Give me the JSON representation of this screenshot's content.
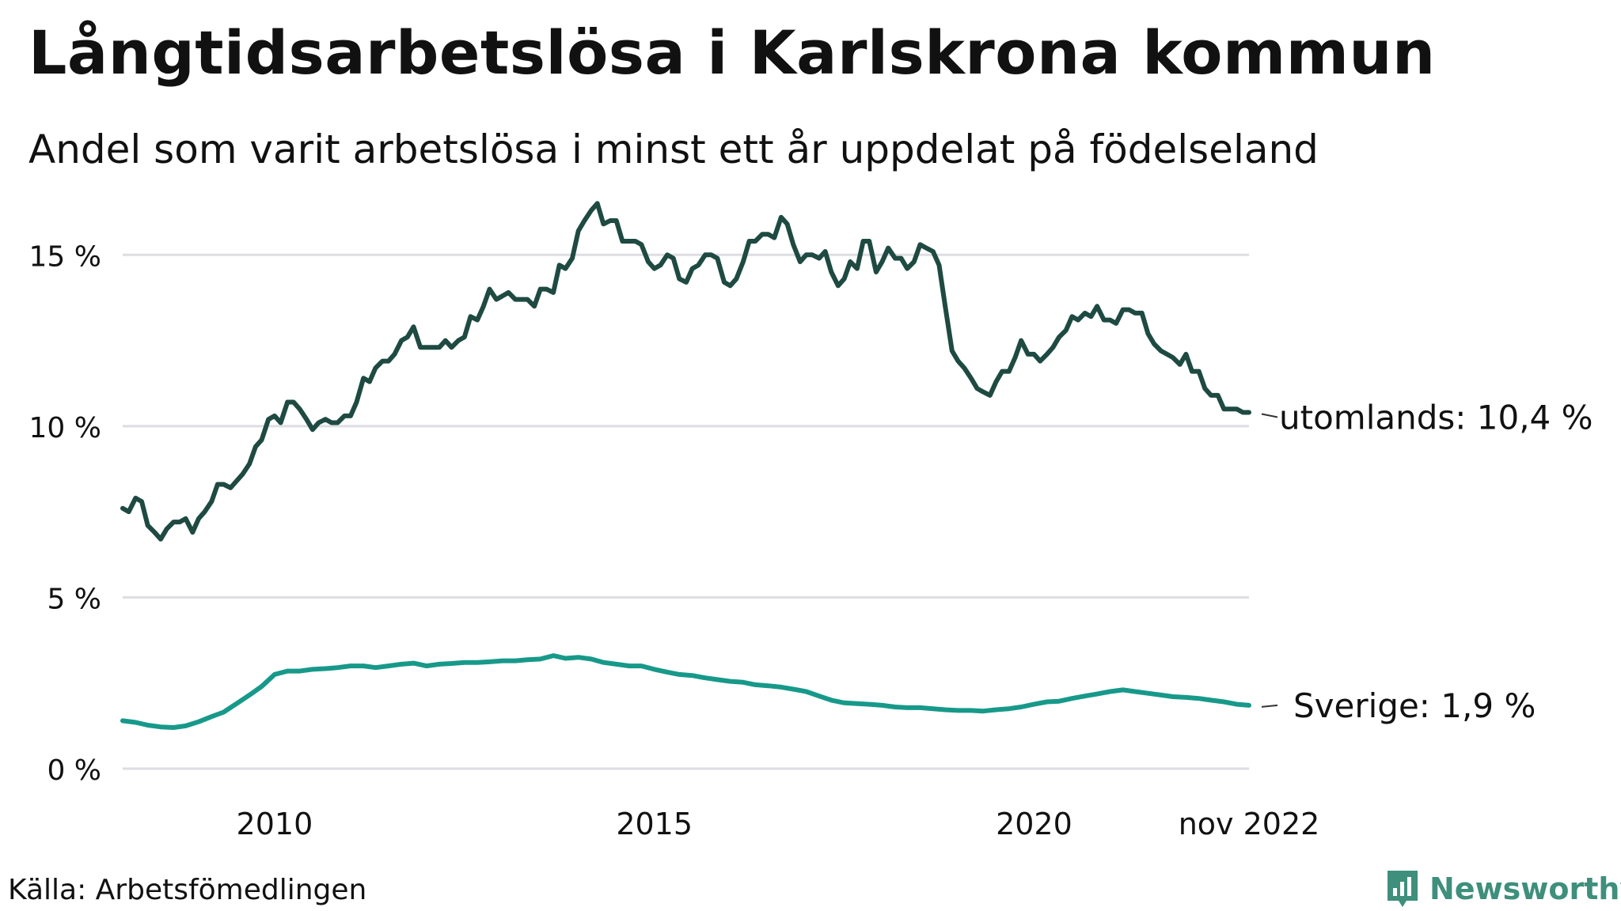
{
  "title": "Långtidsarbetslösa i Karlskrona kommun",
  "subtitle": "Andel som varit arbetslösa i minst ett år uppdelat på födelseland",
  "source": "Källa: Arbetsfömedlingen",
  "brand": {
    "name": "Newsworthy",
    "logo_icon": "newsworthy-bar-chart-icon",
    "color": "#3e8f7c"
  },
  "chart_data": {
    "type": "line",
    "title": "Långtidsarbetslösa i Karlskrona kommun",
    "xlabel": "",
    "ylabel": "",
    "x_unit": "year",
    "xlim": [
      2008.0,
      2022.83
    ],
    "ylim": [
      0,
      16.9
    ],
    "y_ticks": [
      0,
      5,
      10,
      15
    ],
    "y_tick_labels": [
      "0 %",
      "5 %",
      "10 %",
      "15 %"
    ],
    "x_ticks": [
      2010,
      2015,
      2020,
      2022.83
    ],
    "x_tick_labels": [
      "2010",
      "2015",
      "2020",
      "nov 2022"
    ],
    "grid": "horizontal",
    "series": [
      {
        "name": "utomlands",
        "end_label": "utomlands: 10,4 %",
        "color": "#1e4a42",
        "points": [
          [
            2008.0,
            7.6
          ],
          [
            2008.08,
            7.5
          ],
          [
            2008.17,
            7.9
          ],
          [
            2008.25,
            7.8
          ],
          [
            2008.33,
            7.1
          ],
          [
            2008.42,
            6.9
          ],
          [
            2008.5,
            6.7
          ],
          [
            2008.58,
            7.0
          ],
          [
            2008.67,
            7.2
          ],
          [
            2008.75,
            7.2
          ],
          [
            2008.83,
            7.3
          ],
          [
            2008.92,
            6.9
          ],
          [
            2009.0,
            7.3
          ],
          [
            2009.08,
            7.5
          ],
          [
            2009.17,
            7.8
          ],
          [
            2009.25,
            8.3
          ],
          [
            2009.33,
            8.3
          ],
          [
            2009.42,
            8.2
          ],
          [
            2009.5,
            8.4
          ],
          [
            2009.58,
            8.6
          ],
          [
            2009.67,
            8.9
          ],
          [
            2009.75,
            9.4
          ],
          [
            2009.83,
            9.6
          ],
          [
            2009.92,
            10.2
          ],
          [
            2010.0,
            10.3
          ],
          [
            2010.08,
            10.1
          ],
          [
            2010.17,
            10.7
          ],
          [
            2010.25,
            10.7
          ],
          [
            2010.33,
            10.5
          ],
          [
            2010.42,
            10.2
          ],
          [
            2010.5,
            9.9
          ],
          [
            2010.58,
            10.1
          ],
          [
            2010.67,
            10.2
          ],
          [
            2010.75,
            10.1
          ],
          [
            2010.83,
            10.1
          ],
          [
            2010.92,
            10.3
          ],
          [
            2011.0,
            10.3
          ],
          [
            2011.08,
            10.7
          ],
          [
            2011.17,
            11.4
          ],
          [
            2011.25,
            11.3
          ],
          [
            2011.33,
            11.7
          ],
          [
            2011.42,
            11.9
          ],
          [
            2011.5,
            11.9
          ],
          [
            2011.58,
            12.1
          ],
          [
            2011.67,
            12.5
          ],
          [
            2011.75,
            12.6
          ],
          [
            2011.83,
            12.9
          ],
          [
            2011.92,
            12.3
          ],
          [
            2012.0,
            12.3
          ],
          [
            2012.08,
            12.3
          ],
          [
            2012.17,
            12.3
          ],
          [
            2012.25,
            12.5
          ],
          [
            2012.33,
            12.3
          ],
          [
            2012.42,
            12.5
          ],
          [
            2012.5,
            12.6
          ],
          [
            2012.58,
            13.2
          ],
          [
            2012.67,
            13.1
          ],
          [
            2012.75,
            13.5
          ],
          [
            2012.83,
            14.0
          ],
          [
            2012.92,
            13.7
          ],
          [
            2013.0,
            13.8
          ],
          [
            2013.08,
            13.9
          ],
          [
            2013.17,
            13.7
          ],
          [
            2013.25,
            13.7
          ],
          [
            2013.33,
            13.7
          ],
          [
            2013.42,
            13.5
          ],
          [
            2013.5,
            14.0
          ],
          [
            2013.58,
            14.0
          ],
          [
            2013.67,
            13.9
          ],
          [
            2013.75,
            14.7
          ],
          [
            2013.83,
            14.6
          ],
          [
            2013.92,
            14.9
          ],
          [
            2014.0,
            15.7
          ],
          [
            2014.08,
            16.0
          ],
          [
            2014.17,
            16.3
          ],
          [
            2014.25,
            16.5
          ],
          [
            2014.33,
            15.9
          ],
          [
            2014.42,
            16.0
          ],
          [
            2014.5,
            16.0
          ],
          [
            2014.58,
            15.4
          ],
          [
            2014.67,
            15.4
          ],
          [
            2014.75,
            15.4
          ],
          [
            2014.83,
            15.3
          ],
          [
            2014.92,
            14.8
          ],
          [
            2015.0,
            14.6
          ],
          [
            2015.08,
            14.7
          ],
          [
            2015.17,
            15.0
          ],
          [
            2015.25,
            14.9
          ],
          [
            2015.33,
            14.3
          ],
          [
            2015.42,
            14.2
          ],
          [
            2015.5,
            14.6
          ],
          [
            2015.58,
            14.7
          ],
          [
            2015.67,
            15.0
          ],
          [
            2015.75,
            15.0
          ],
          [
            2015.83,
            14.9
          ],
          [
            2015.92,
            14.2
          ],
          [
            2016.0,
            14.1
          ],
          [
            2016.08,
            14.3
          ],
          [
            2016.17,
            14.8
          ],
          [
            2016.25,
            15.4
          ],
          [
            2016.33,
            15.4
          ],
          [
            2016.42,
            15.6
          ],
          [
            2016.5,
            15.6
          ],
          [
            2016.58,
            15.5
          ],
          [
            2016.67,
            16.1
          ],
          [
            2016.75,
            15.9
          ],
          [
            2016.83,
            15.3
          ],
          [
            2016.92,
            14.8
          ],
          [
            2017.0,
            15.0
          ],
          [
            2017.08,
            15.0
          ],
          [
            2017.17,
            14.9
          ],
          [
            2017.25,
            15.1
          ],
          [
            2017.33,
            14.5
          ],
          [
            2017.42,
            14.1
          ],
          [
            2017.5,
            14.3
          ],
          [
            2017.58,
            14.8
          ],
          [
            2017.67,
            14.6
          ],
          [
            2017.75,
            15.4
          ],
          [
            2017.83,
            15.4
          ],
          [
            2017.92,
            14.5
          ],
          [
            2018.0,
            14.8
          ],
          [
            2018.08,
            15.2
          ],
          [
            2018.17,
            14.9
          ],
          [
            2018.25,
            14.9
          ],
          [
            2018.33,
            14.6
          ],
          [
            2018.42,
            14.8
          ],
          [
            2018.5,
            15.3
          ],
          [
            2018.58,
            15.2
          ],
          [
            2018.67,
            15.1
          ],
          [
            2018.75,
            14.7
          ],
          [
            2018.83,
            13.5
          ],
          [
            2018.92,
            12.2
          ],
          [
            2019.0,
            11.9
          ],
          [
            2019.08,
            11.7
          ],
          [
            2019.17,
            11.4
          ],
          [
            2019.25,
            11.1
          ],
          [
            2019.33,
            11.0
          ],
          [
            2019.42,
            10.9
          ],
          [
            2019.5,
            11.3
          ],
          [
            2019.58,
            11.6
          ],
          [
            2019.67,
            11.6
          ],
          [
            2019.75,
            12.0
          ],
          [
            2019.83,
            12.5
          ],
          [
            2019.92,
            12.1
          ],
          [
            2020.0,
            12.1
          ],
          [
            2020.08,
            11.9
          ],
          [
            2020.17,
            12.1
          ],
          [
            2020.25,
            12.3
          ],
          [
            2020.33,
            12.6
          ],
          [
            2020.42,
            12.8
          ],
          [
            2020.5,
            13.2
          ],
          [
            2020.58,
            13.1
          ],
          [
            2020.67,
            13.3
          ],
          [
            2020.75,
            13.2
          ],
          [
            2020.83,
            13.5
          ],
          [
            2020.92,
            13.1
          ],
          [
            2021.0,
            13.1
          ],
          [
            2021.08,
            13.0
          ],
          [
            2021.17,
            13.4
          ],
          [
            2021.25,
            13.4
          ],
          [
            2021.33,
            13.3
          ],
          [
            2021.42,
            13.3
          ],
          [
            2021.5,
            12.7
          ],
          [
            2021.58,
            12.4
          ],
          [
            2021.67,
            12.2
          ],
          [
            2021.75,
            12.1
          ],
          [
            2021.83,
            12.0
          ],
          [
            2021.92,
            11.8
          ],
          [
            2022.0,
            12.1
          ],
          [
            2022.08,
            11.6
          ],
          [
            2022.17,
            11.6
          ],
          [
            2022.25,
            11.1
          ],
          [
            2022.33,
            10.9
          ],
          [
            2022.42,
            10.9
          ],
          [
            2022.5,
            10.5
          ],
          [
            2022.58,
            10.5
          ],
          [
            2022.67,
            10.5
          ],
          [
            2022.75,
            10.4
          ],
          [
            2022.83,
            10.4
          ]
        ]
      },
      {
        "name": "Sverige",
        "end_label": "Sverige:  1,9 %",
        "color": "#17998a",
        "points": [
          [
            2008.0,
            1.4
          ],
          [
            2008.17,
            1.35
          ],
          [
            2008.33,
            1.27
          ],
          [
            2008.5,
            1.22
          ],
          [
            2008.67,
            1.2
          ],
          [
            2008.83,
            1.25
          ],
          [
            2009.0,
            1.37
          ],
          [
            2009.17,
            1.52
          ],
          [
            2009.33,
            1.65
          ],
          [
            2009.5,
            1.9
          ],
          [
            2009.67,
            2.15
          ],
          [
            2009.83,
            2.4
          ],
          [
            2010.0,
            2.75
          ],
          [
            2010.17,
            2.85
          ],
          [
            2010.33,
            2.85
          ],
          [
            2010.5,
            2.9
          ],
          [
            2010.67,
            2.92
          ],
          [
            2010.83,
            2.95
          ],
          [
            2011.0,
            3.0
          ],
          [
            2011.17,
            3.0
          ],
          [
            2011.33,
            2.95
          ],
          [
            2011.5,
            3.0
          ],
          [
            2011.67,
            3.05
          ],
          [
            2011.83,
            3.08
          ],
          [
            2012.0,
            3.0
          ],
          [
            2012.17,
            3.05
          ],
          [
            2012.33,
            3.07
          ],
          [
            2012.5,
            3.1
          ],
          [
            2012.67,
            3.1
          ],
          [
            2012.83,
            3.12
          ],
          [
            2013.0,
            3.15
          ],
          [
            2013.17,
            3.15
          ],
          [
            2013.33,
            3.18
          ],
          [
            2013.5,
            3.2
          ],
          [
            2013.67,
            3.3
          ],
          [
            2013.83,
            3.22
          ],
          [
            2014.0,
            3.25
          ],
          [
            2014.17,
            3.2
          ],
          [
            2014.33,
            3.1
          ],
          [
            2014.5,
            3.05
          ],
          [
            2014.67,
            3.0
          ],
          [
            2014.83,
            3.0
          ],
          [
            2015.0,
            2.9
          ],
          [
            2015.17,
            2.82
          ],
          [
            2015.33,
            2.75
          ],
          [
            2015.5,
            2.72
          ],
          [
            2015.67,
            2.65
          ],
          [
            2015.83,
            2.6
          ],
          [
            2016.0,
            2.55
          ],
          [
            2016.17,
            2.52
          ],
          [
            2016.33,
            2.45
          ],
          [
            2016.5,
            2.42
          ],
          [
            2016.67,
            2.38
          ],
          [
            2016.83,
            2.32
          ],
          [
            2017.0,
            2.25
          ],
          [
            2017.17,
            2.12
          ],
          [
            2017.33,
            2.0
          ],
          [
            2017.5,
            1.92
          ],
          [
            2017.67,
            1.9
          ],
          [
            2017.83,
            1.88
          ],
          [
            2018.0,
            1.85
          ],
          [
            2018.17,
            1.8
          ],
          [
            2018.33,
            1.78
          ],
          [
            2018.5,
            1.78
          ],
          [
            2018.67,
            1.75
          ],
          [
            2018.83,
            1.72
          ],
          [
            2019.0,
            1.7
          ],
          [
            2019.17,
            1.7
          ],
          [
            2019.33,
            1.68
          ],
          [
            2019.5,
            1.72
          ],
          [
            2019.67,
            1.75
          ],
          [
            2019.83,
            1.8
          ],
          [
            2020.0,
            1.88
          ],
          [
            2020.17,
            1.95
          ],
          [
            2020.33,
            1.97
          ],
          [
            2020.5,
            2.05
          ],
          [
            2020.67,
            2.12
          ],
          [
            2020.83,
            2.18
          ],
          [
            2021.0,
            2.25
          ],
          [
            2021.17,
            2.3
          ],
          [
            2021.33,
            2.25
          ],
          [
            2021.5,
            2.2
          ],
          [
            2021.67,
            2.15
          ],
          [
            2021.83,
            2.1
          ],
          [
            2022.0,
            2.08
          ],
          [
            2022.17,
            2.05
          ],
          [
            2022.33,
            2.0
          ],
          [
            2022.5,
            1.95
          ],
          [
            2022.67,
            1.88
          ],
          [
            2022.83,
            1.85
          ]
        ]
      }
    ]
  }
}
